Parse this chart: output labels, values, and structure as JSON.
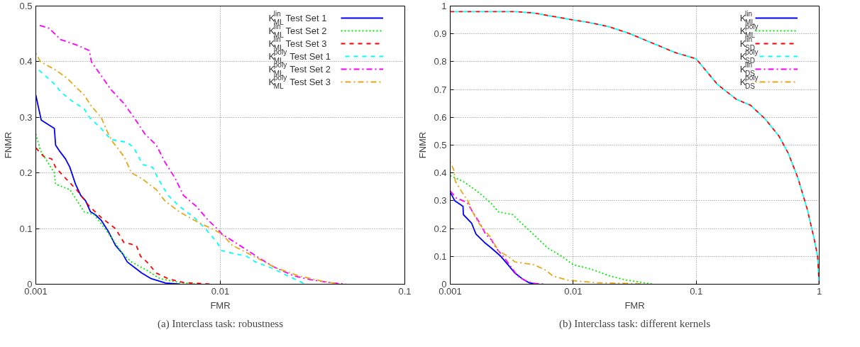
{
  "chart_data": [
    {
      "type": "line",
      "title": "(a) Interclass task: robustness",
      "xlabel": "FMR",
      "ylabel": "FNMR",
      "log": "x",
      "xlim": [
        0.001,
        0.1
      ],
      "xticks": [
        0.001,
        0.01,
        0.1
      ],
      "ylim": [
        0,
        0.5
      ],
      "yticks": [
        0,
        0.1,
        0.2,
        0.3,
        0.4,
        0.5
      ],
      "grid": true,
      "legend": "top right",
      "series": [
        {
          "name": "K$^{lin}$$_{ML}$ Test Set 1",
          "color": "#0000ff",
          "line_style": "solid",
          "x": [
            0.001,
            0.00103,
            0.00107,
            0.00126,
            0.00128,
            0.00134,
            0.00145,
            0.00153,
            0.00164,
            0.00175,
            0.00186,
            0.00198,
            0.0021,
            0.00226,
            0.00247,
            0.0027,
            0.00295,
            0.00313,
            0.00343,
            0.00375,
            0.00422,
            0.00505,
            0.00603
          ],
          "values": [
            0.34,
            0.32,
            0.295,
            0.28,
            0.25,
            0.24,
            0.225,
            0.21,
            0.18,
            0.16,
            0.15,
            0.13,
            0.125,
            0.115,
            0.095,
            0.07,
            0.055,
            0.04,
            0.03,
            0.02,
            0.01,
            0.002,
            0
          ]
        },
        {
          "name": "K$^{lin}$$_{ML}$ Test Set 2",
          "color": "#00ee00",
          "line_style": "dotted",
          "x": [
            0.001,
            0.00106,
            0.00126,
            0.00128,
            0.00153,
            0.0016,
            0.00183,
            0.00207,
            0.00237,
            0.00262,
            0.00295,
            0.0033,
            0.004,
            0.0047,
            0.006,
            0.0075
          ],
          "values": [
            0.27,
            0.24,
            0.2,
            0.18,
            0.17,
            0.16,
            0.13,
            0.125,
            0.1,
            0.08,
            0.055,
            0.04,
            0.025,
            0.01,
            0.003,
            0
          ]
        },
        {
          "name": "K$^{lin}$$_{ML}$ Test Set 3",
          "color": "#ff0000",
          "line_style": "dashed",
          "x": [
            0.001,
            0.0011,
            0.00122,
            0.00128,
            0.00136,
            0.00166,
            0.00195,
            0.00226,
            0.00247,
            0.0027,
            0.003,
            0.0035,
            0.0037,
            0.004,
            0.0045,
            0.0052,
            0.0063,
            0.009
          ],
          "values": [
            0.245,
            0.23,
            0.225,
            0.21,
            0.2,
            0.17,
            0.14,
            0.12,
            0.11,
            0.1,
            0.075,
            0.07,
            0.05,
            0.04,
            0.02,
            0.01,
            0.003,
            0
          ]
        },
        {
          "name": "K$^{poly}$$_{ML}$ Test Set 1",
          "color": "#00ffff",
          "line_style": "dashed",
          "x": [
            0.001,
            0.00112,
            0.00126,
            0.00137,
            0.00156,
            0.00183,
            0.00195,
            0.00226,
            0.00255,
            0.00313,
            0.0034,
            0.0038,
            0.0043,
            0.0046,
            0.0052,
            0.006,
            0.0072,
            0.0083,
            0.0096,
            0.0102,
            0.0139,
            0.0155,
            0.0187,
            0.025,
            0.029
          ],
          "values": [
            0.39,
            0.375,
            0.36,
            0.345,
            0.33,
            0.315,
            0.3,
            0.28,
            0.26,
            0.255,
            0.245,
            0.215,
            0.21,
            0.19,
            0.16,
            0.14,
            0.12,
            0.1,
            0.075,
            0.06,
            0.05,
            0.04,
            0.03,
            0.01,
            0
          ]
        },
        {
          "name": "K$^{poly}$$_{ML}$ Test Set 2",
          "color": "#ff00ff",
          "line_style": "dashdot",
          "x": [
            0.00105,
            0.00118,
            0.00136,
            0.00166,
            0.00195,
            0.002,
            0.00226,
            0.00255,
            0.003,
            0.0034,
            0.0039,
            0.0045,
            0.005,
            0.0057,
            0.0063,
            0.0074,
            0.0086,
            0.0096,
            0.0102,
            0.0127,
            0.0166,
            0.0198,
            0.025,
            0.0309,
            0.039,
            0.048
          ],
          "values": [
            0.465,
            0.46,
            0.44,
            0.43,
            0.42,
            0.4,
            0.375,
            0.35,
            0.325,
            0.3,
            0.27,
            0.25,
            0.22,
            0.19,
            0.16,
            0.14,
            0.115,
            0.1,
            0.09,
            0.07,
            0.045,
            0.03,
            0.015,
            0.008,
            0.003,
            0
          ]
        },
        {
          "name": "K$^{poly}$$_{ML}$ Test Set 3",
          "color": "#e6a817",
          "line_style": "dotdash",
          "x": [
            0.001,
            0.00106,
            0.00128,
            0.00148,
            0.00164,
            0.00183,
            0.002,
            0.00226,
            0.00247,
            0.00262,
            0.003,
            0.0033,
            0.00375,
            0.0045,
            0.005,
            0.006,
            0.0077,
            0.009,
            0.0102,
            0.0116,
            0.0152,
            0.0198,
            0.0266,
            0.036,
            0.045
          ],
          "values": [
            0.415,
            0.4,
            0.385,
            0.37,
            0.355,
            0.34,
            0.32,
            0.3,
            0.27,
            0.255,
            0.23,
            0.2,
            0.19,
            0.17,
            0.15,
            0.13,
            0.11,
            0.1,
            0.09,
            0.07,
            0.05,
            0.03,
            0.015,
            0.005,
            0
          ]
        }
      ]
    },
    {
      "type": "line",
      "title": "(b) Interclass task: different kernels",
      "xlabel": "FMR",
      "ylabel": "FNMR",
      "log": "x",
      "xlim": [
        0.001,
        1
      ],
      "xticks": [
        0.001,
        0.01,
        0.1,
        1
      ],
      "ylim": [
        0,
        1
      ],
      "yticks": [
        0,
        0.1,
        0.2,
        0.3,
        0.4,
        0.5,
        0.6,
        0.7,
        0.8,
        0.9,
        1
      ],
      "grid": true,
      "legend": "top right",
      "series": [
        {
          "name": "K$^{lin}$$_{ML}$",
          "color": "#0000ff",
          "line_style": "solid",
          "x": [
            0.001,
            0.00109,
            0.00127,
            0.00128,
            0.00149,
            0.00162,
            0.0019,
            0.00216,
            0.00258,
            0.00295,
            0.00336,
            0.00384,
            0.00438,
            0.0052
          ],
          "values": [
            0.33,
            0.3,
            0.28,
            0.25,
            0.22,
            0.18,
            0.15,
            0.13,
            0.1,
            0.07,
            0.04,
            0.02,
            0.005,
            0
          ]
        },
        {
          "name": "K$^{poly}$$_{ML}$",
          "color": "#00ee00",
          "line_style": "dotted",
          "x": [
            0.001,
            0.00127,
            0.00159,
            0.00181,
            0.00216,
            0.00247,
            0.00322,
            0.004,
            0.005,
            0.0062,
            0.0081,
            0.01,
            0.0138,
            0.0197,
            0.0267,
            0.045
          ],
          "values": [
            0.39,
            0.37,
            0.34,
            0.32,
            0.29,
            0.26,
            0.25,
            0.21,
            0.17,
            0.13,
            0.1,
            0.07,
            0.055,
            0.03,
            0.015,
            0
          ]
        },
        {
          "name": "K$^{lin}$$_{SD}$",
          "color": "#ff0000",
          "line_style": "dashed",
          "x": [
            0.001,
            0.00336,
            0.0048,
            0.0074,
            0.01,
            0.0138,
            0.0197,
            0.0279,
            0.0434,
            0.0672,
            0.1,
            0.149,
            0.2115,
            0.277,
            0.362,
            0.47,
            0.56,
            0.67,
            0.8,
            0.91,
            0.97,
            1
          ],
          "values": [
            0.98,
            0.98,
            0.975,
            0.96,
            0.95,
            0.94,
            0.925,
            0.903,
            0.868,
            0.833,
            0.81,
            0.718,
            0.665,
            0.643,
            0.595,
            0.533,
            0.471,
            0.383,
            0.269,
            0.163,
            0.101,
            0
          ]
        },
        {
          "name": "K$^{poly}$$_{SD}$",
          "color": "#00ffff",
          "line_style": "dashed",
          "x": [
            0.001,
            0.00336,
            0.0048,
            0.0074,
            0.01,
            0.0138,
            0.0197,
            0.0279,
            0.0434,
            0.0672,
            0.1,
            0.149,
            0.2115,
            0.277,
            0.362,
            0.47,
            0.56,
            0.67,
            0.8,
            0.91,
            0.97,
            1
          ],
          "values": [
            0.98,
            0.98,
            0.975,
            0.96,
            0.95,
            0.94,
            0.925,
            0.903,
            0.868,
            0.833,
            0.81,
            0.718,
            0.665,
            0.643,
            0.595,
            0.533,
            0.471,
            0.383,
            0.269,
            0.163,
            0.101,
            0
          ]
        },
        {
          "name": "K$^{lin}$$_{DS}$",
          "color": "#ff00ff",
          "line_style": "dashdot",
          "x": [
            0.001,
            0.00112,
            0.00127,
            0.00139,
            0.00152,
            0.00174,
            0.00194,
            0.00216,
            0.00236,
            0.0027,
            0.00315,
            0.00352,
            0.0042,
            0.0048,
            0.006
          ],
          "values": [
            0.335,
            0.31,
            0.3,
            0.29,
            0.26,
            0.22,
            0.18,
            0.16,
            0.13,
            0.1,
            0.06,
            0.03,
            0.01,
            0.003,
            0
          ]
        },
        {
          "name": "K$^{poly}$$_{DS}$",
          "color": "#e6a817",
          "line_style": "dotdash",
          "x": [
            0.001,
            0.00107,
            0.0011,
            0.00125,
            0.00139,
            0.00152,
            0.0017,
            0.00185,
            0.00212,
            0.00247,
            0.00295,
            0.00336,
            0.0048,
            0.006,
            0.0068,
            0.0089,
            0.0116,
            0.0157,
            0.0267,
            0.04
          ],
          "values": [
            0.44,
            0.41,
            0.37,
            0.33,
            0.3,
            0.26,
            0.22,
            0.2,
            0.17,
            0.12,
            0.1,
            0.08,
            0.07,
            0.05,
            0.03,
            0.015,
            0.01,
            0.005,
            0.003,
            0
          ]
        }
      ]
    }
  ]
}
